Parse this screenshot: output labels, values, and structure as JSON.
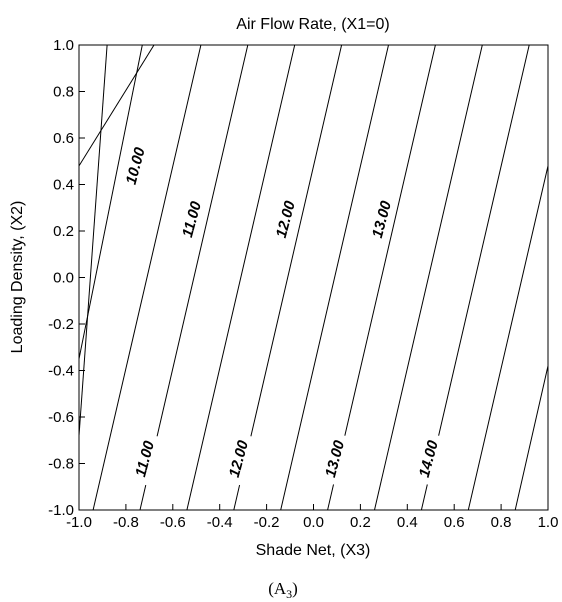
{
  "chart_data": {
    "type": "contour",
    "title": "Air Flow Rate, (X1=0)",
    "xlabel": "Shade Net, (X3)",
    "ylabel": "Loading Density, (X2)",
    "xlim": [
      -1.0,
      1.0
    ],
    "ylim": [
      -1.0,
      1.0
    ],
    "xticks": [
      "-1.0",
      "-0.8",
      "-0.6",
      "-0.4",
      "-0.2",
      "0.0",
      "0.2",
      "0.4",
      "0.6",
      "0.8",
      "1.0"
    ],
    "yticks": [
      "-1.0",
      "-0.8",
      "-0.6",
      "-0.4",
      "-0.2",
      "0.0",
      "0.2",
      "0.4",
      "0.6",
      "0.8",
      "1.0"
    ],
    "grid": false,
    "contour_lines": [
      {
        "points": [
          [
            -1.0,
            -0.68
          ],
          [
            -0.88,
            1.0
          ]
        ]
      },
      {
        "points": [
          [
            -1.0,
            0.48
          ],
          [
            -0.68,
            1.0
          ]
        ]
      },
      {
        "points": [
          [
            -0.94,
            -1.0
          ],
          [
            -0.48,
            1.0
          ]
        ]
      },
      {
        "points": [
          [
            -1.0,
            -0.35
          ],
          [
            -0.73,
            1.0
          ]
        ]
      },
      {
        "points": [
          [
            -0.74,
            -1.0
          ],
          [
            -0.28,
            1.0
          ]
        ]
      },
      {
        "points": [
          [
            -0.54,
            -1.0
          ],
          [
            -0.08,
            1.0
          ]
        ]
      },
      {
        "points": [
          [
            -0.34,
            -1.0
          ],
          [
            0.12,
            1.0
          ]
        ]
      },
      {
        "points": [
          [
            -0.14,
            -1.0
          ],
          [
            0.32,
            1.0
          ]
        ]
      },
      {
        "points": [
          [
            0.06,
            -1.0
          ],
          [
            0.52,
            1.0
          ]
        ]
      },
      {
        "points": [
          [
            0.26,
            -1.0
          ],
          [
            0.72,
            1.0
          ]
        ]
      },
      {
        "points": [
          [
            0.46,
            -1.0
          ],
          [
            0.92,
            1.0
          ]
        ]
      },
      {
        "points": [
          [
            0.66,
            -1.0
          ],
          [
            1.0,
            0.48
          ]
        ]
      },
      {
        "points": [
          [
            0.86,
            -1.0
          ],
          [
            1.0,
            -0.38
          ]
        ]
      }
    ],
    "contour_labels": [
      {
        "text": "10.00",
        "x": -0.76,
        "y": 0.48
      },
      {
        "text": "11.00",
        "x": -0.52,
        "y": 0.25
      },
      {
        "text": "12.00",
        "x": -0.12,
        "y": 0.25
      },
      {
        "text": "13.00",
        "x": 0.29,
        "y": 0.25
      },
      {
        "text": "11.00",
        "x": -0.72,
        "y": -0.78
      },
      {
        "text": "12.00",
        "x": -0.32,
        "y": -0.78
      },
      {
        "text": "13.00",
        "x": 0.09,
        "y": -0.78
      },
      {
        "text": "14.00",
        "x": 0.49,
        "y": -0.78
      }
    ]
  },
  "caption": {
    "main": "(A",
    "sub": "3",
    "end": ")"
  }
}
